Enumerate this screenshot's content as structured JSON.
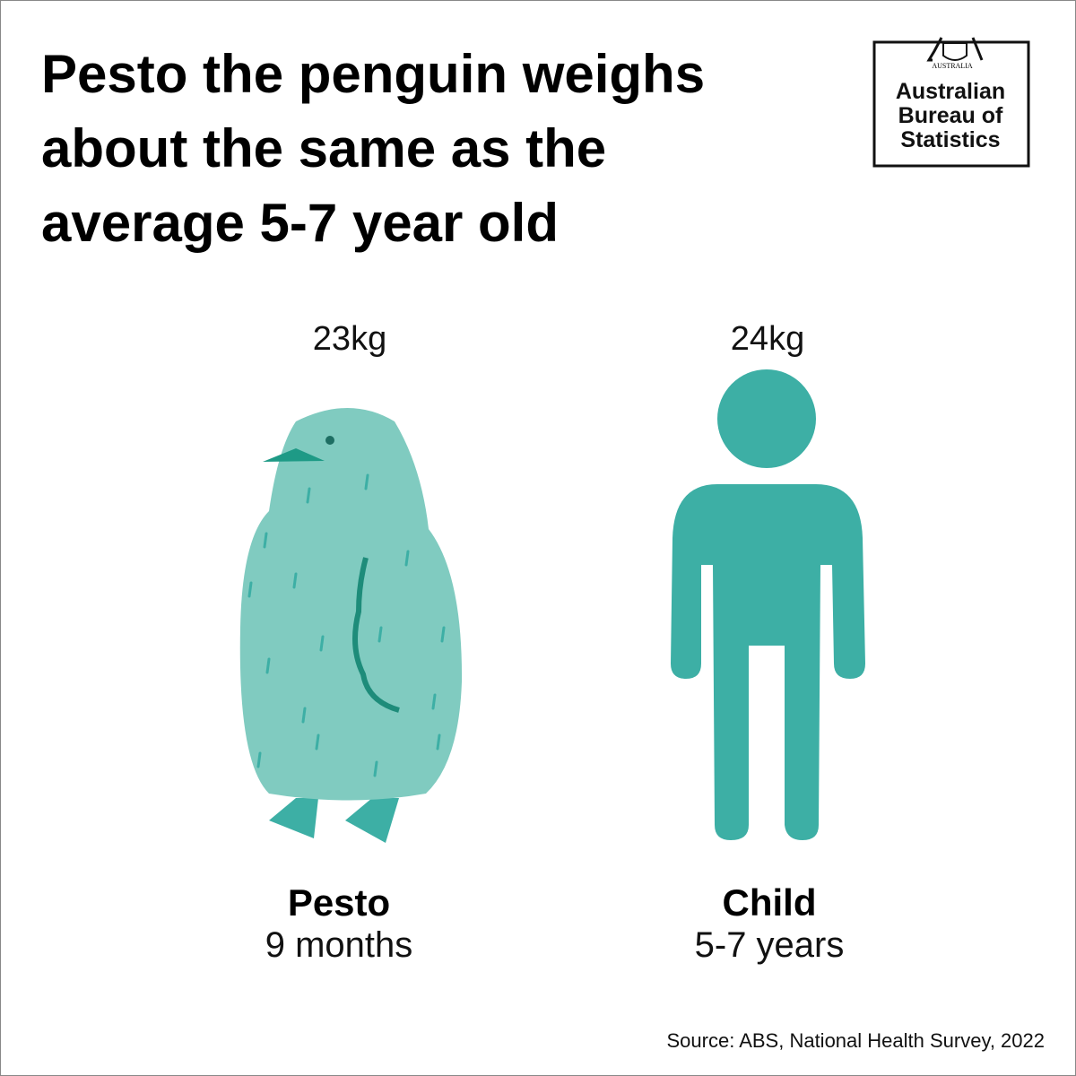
{
  "title": [
    "Pesto the penguin weighs",
    "about the same as the",
    "average 5-7 year old"
  ],
  "logo": {
    "crest": "AUSTRALIA",
    "lines": [
      "Australian",
      "Bureau of",
      "Statistics"
    ]
  },
  "figures": [
    {
      "weight": "23kg",
      "name": "Pesto",
      "age": "9 months"
    },
    {
      "weight": "24kg",
      "name": "Child",
      "age": "5-7 years"
    }
  ],
  "source": "Source: ABS, National Health Survey, 2022"
}
